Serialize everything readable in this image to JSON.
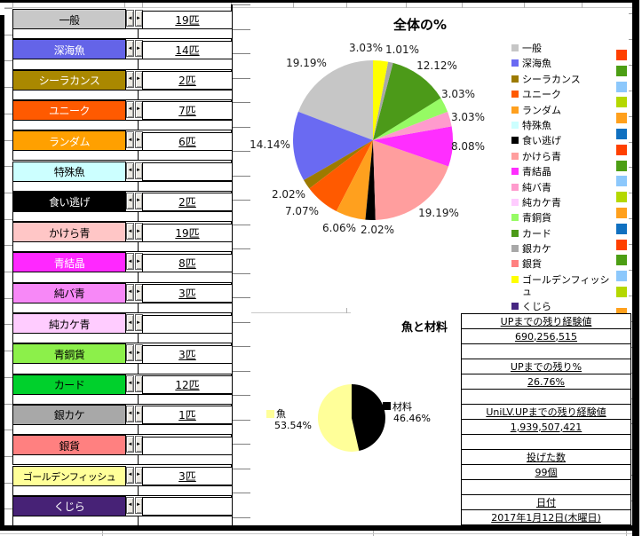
{
  "left_panel": {
    "items": [
      {
        "label": "一般",
        "count": "19匹",
        "bg": "#C8C8C8",
        "fg": "#000000"
      },
      {
        "label": "深海魚",
        "count": "14匹",
        "bg": "#6464E8",
        "fg": "#FFFFFF"
      },
      {
        "label": "シーラカンス",
        "count": "2匹",
        "bg": "#AA8800",
        "fg": "#FFFFFF"
      },
      {
        "label": "ユニーク",
        "count": "7匹",
        "bg": "#FF5A00",
        "fg": "#FFFFFF"
      },
      {
        "label": "ランダム",
        "count": "6匹",
        "bg": "#FFA000",
        "fg": "#FFFFFF"
      },
      {
        "label": "特殊魚",
        "count": "",
        "bg": "#CCFFFF",
        "fg": "#000000"
      },
      {
        "label": "食い逃げ",
        "count": "2匹",
        "bg": "#000000",
        "fg": "#FFFFFF"
      },
      {
        "label": "かけら青",
        "count": "19匹",
        "bg": "#FFC6C6",
        "fg": "#000000"
      },
      {
        "label": "青結晶",
        "count": "8匹",
        "bg": "#FF28FF",
        "fg": "#FFFFFF"
      },
      {
        "label": "純バ青",
        "count": "3匹",
        "bg": "#F788F7",
        "fg": "#000000"
      },
      {
        "label": "純カケ青",
        "count": "",
        "bg": "#FFCCFF",
        "fg": "#000000"
      },
      {
        "label": "青銅貨",
        "count": "3匹",
        "bg": "#8CF04A",
        "fg": "#000000"
      },
      {
        "label": "カード",
        "count": "12匹",
        "bg": "#00D02C",
        "fg": "#000000"
      },
      {
        "label": "銀カケ",
        "count": "1匹",
        "bg": "#A8A8A8",
        "fg": "#000000"
      },
      {
        "label": "銀貨",
        "count": "",
        "bg": "#FF8080",
        "fg": "#000000"
      },
      {
        "label": "ゴールデンフィッシュ",
        "count": "3匹",
        "bg": "#FFFF99",
        "fg": "#000000"
      },
      {
        "label": "くじら",
        "count": "",
        "bg": "#472276",
        "fg": "#FFFFFF"
      }
    ]
  },
  "chart_data": [
    {
      "type": "pie",
      "title": "全体の%",
      "categories": [
        "一般",
        "深海魚",
        "シーラカンス",
        "ユニーク",
        "ランダム",
        "特殊魚",
        "食い逃げ",
        "かけら青",
        "青結晶",
        "純バ青",
        "純カケ青",
        "青銅貨",
        "カード",
        "銀カケ",
        "銀貨",
        "ゴールデンフィッシュ",
        "くじら"
      ],
      "values": [
        19,
        14,
        2,
        7,
        6,
        0,
        2,
        19,
        8,
        3,
        0,
        3,
        12,
        1,
        0,
        3,
        0
      ],
      "total": 99,
      "percent_labels": [
        "19.19%",
        "14.14%",
        "2.02%",
        "7.07%",
        "6.06%",
        "",
        "2.02%",
        "19.19%",
        "8.08%",
        "3.03%",
        "",
        "3.03%",
        "12.12%",
        "1.01%",
        "",
        "3.03%",
        ""
      ],
      "colors": [
        "#C6C6C6",
        "#6A6AF2",
        "#9C7A00",
        "#FF5A00",
        "#FFA01E",
        "#CCFFFF",
        "#000000",
        "#FF9E9E",
        "#FF2EFF",
        "#FF9BCD",
        "#FFCCFF",
        "#96FB64",
        "#4C9A19",
        "#A8A8A8",
        "#FF8080",
        "#FFFF00",
        "#462682"
      ],
      "direction": "counterclockwise",
      "start_angle": "top",
      "legend_position": "right"
    },
    {
      "type": "pie",
      "title": "魚と材料",
      "categories": [
        "魚",
        "材料"
      ],
      "values": [
        53.54,
        46.46
      ],
      "percent_labels": [
        "53.54%",
        "46.46%"
      ],
      "colors": [
        "#FFFF99",
        "#000000"
      ],
      "direction": "counterclockwise",
      "start_angle": "top"
    }
  ],
  "right_margin_squares": [
    "#FF4000",
    "#4C9E14",
    "#8CC8FC",
    "#B4D800",
    "#FFA01C",
    "#1070C0",
    "#FF4000",
    "#4C9E14",
    "#8CC8FC",
    "#B4D800",
    "#FFA01C",
    "#1070C0",
    "#FF4000",
    "#4C9E14",
    "#8CC8FC",
    "#B4D800",
    "#FFA01C"
  ],
  "info_panel": {
    "groups": [
      {
        "label": "UPまでの残り経験値",
        "value": "690,256,515"
      },
      {
        "label": "UPまでの残り%",
        "value": "26.76%"
      },
      {
        "label": "UniLV.UPまでの残り経験値",
        "value": "1,939,507,421"
      },
      {
        "label": "投げた数",
        "value": "99個"
      },
      {
        "label": "日付",
        "value": "2017年1月12日(木曜日)"
      }
    ]
  }
}
